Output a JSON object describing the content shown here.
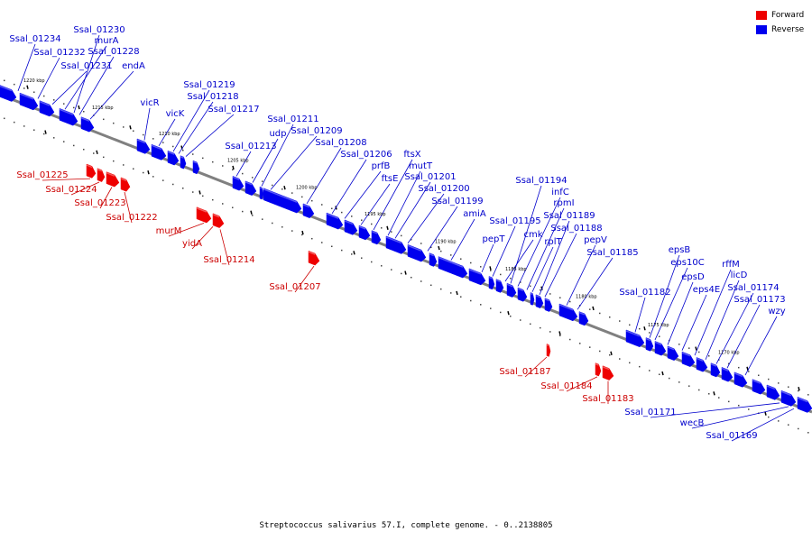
{
  "caption": "Streptococcus salivarius 57.I, complete genome. - 0..2138805",
  "legend": [
    {
      "label": "Forward",
      "color": "#ee0000"
    },
    {
      "label": "Reverse",
      "color": "#0000ee"
    }
  ],
  "colors": {
    "forward": "#ee0000",
    "reverse": "#0000ee",
    "backbone": "#808080",
    "forward_label": "#cc0000",
    "reverse_label": "#0000cc"
  },
  "ticks": [
    "1220 kbp",
    "1215 kbp",
    "1210 kbp",
    "1205 kbp",
    "1200 kbp",
    "1195 kbp",
    "1190 kbp",
    "1185 kbp",
    "1180 kbp",
    "1175 kbp",
    "1170 kbp"
  ],
  "reverse_genes": [
    "Ssal_01234",
    "Ssal_01232",
    "Ssal_01231",
    "murA",
    "Ssal_01230",
    "Ssal_01228",
    "endA",
    "vicR",
    "vicK",
    "Ssal_01219",
    "Ssal_01218",
    "Ssal_01217",
    "Ssal_01213",
    "udp",
    "Ssal_01211",
    "Ssal_01209",
    "Ssal_01208",
    "Ssal_01206",
    "prfB",
    "ftsE",
    "ftsX",
    "mutT",
    "Ssal_01201",
    "Ssal_01200",
    "Ssal_01199",
    "amiA",
    "pepT",
    "Ssal_01195",
    "cmk",
    "Ssal_01194",
    "infC",
    "rpmI",
    "rplT",
    "Ssal_01189",
    "Ssal_01188",
    "pepV",
    "Ssal_01185",
    "Ssal_01182",
    "epsB",
    "eps10C",
    "epsD",
    "eps4E",
    "rffM",
    "licD",
    "Ssal_01174",
    "Ssal_01173",
    "wzy",
    "Ssal_01171",
    "wecB",
    "Ssal_01169"
  ],
  "forward_genes": [
    "Ssal_01225",
    "Ssal_01224",
    "Ssal_01223",
    "Ssal_01222",
    "murM",
    "yidA",
    "Ssal_01214",
    "Ssal_01207",
    "Ssal_01187",
    "Ssal_01184",
    "Ssal_01183"
  ]
}
